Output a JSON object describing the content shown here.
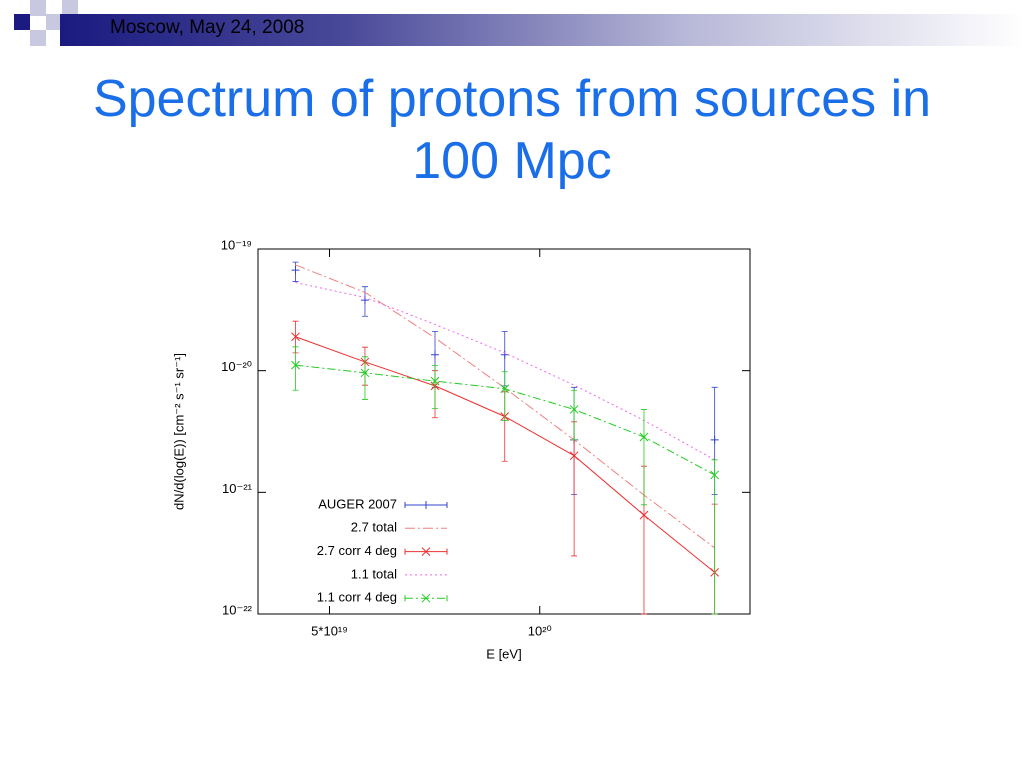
{
  "header": "Moscow, May 24, 2008",
  "chart_data": {
    "type": "line",
    "title": "Spectrum of protons from sources in 100 Mpc",
    "x_label": "E [eV]",
    "y_label": "dN/d(log(E)) [cm⁻² s⁻¹ sr⁻¹]",
    "x_scale": "log",
    "y_scale": "log",
    "xlim": [
      3.95e+19,
      2e+20
    ],
    "ylim": [
      1e-22,
      1e-19
    ],
    "xticks": [
      {
        "value": 5e+19,
        "label": "5*10¹⁹"
      },
      {
        "value": 1e+20,
        "label": "10²⁰"
      }
    ],
    "yticks": [
      {
        "value": 1e-22,
        "label": "10⁻²²"
      },
      {
        "value": 1e-21,
        "label": "10⁻²¹"
      },
      {
        "value": 1e-20,
        "label": "10⁻²⁰"
      },
      {
        "value": 1e-19,
        "label": "10⁻¹⁹"
      }
    ],
    "legend": "lower left",
    "x": [
      4.47e+19,
      5.62e+19,
      7.08e+19,
      8.91e+19,
      1.12e+20,
      1.41e+20,
      1.78e+20
    ],
    "series": [
      {
        "name": "AUGER 2007",
        "color": "#3344cc",
        "style": "points",
        "marker": "+",
        "values": [
          6.7e-20,
          3.8e-20,
          1.35e-20,
          1.35e-20,
          2.7e-21,
          null,
          2.7e-21
        ],
        "y_low": [
          5.4e-20,
          2.8e-20,
          7.3e-21,
          7.5e-21,
          9.6e-22,
          null,
          9.6e-22
        ],
        "y_high": [
          7.8e-20,
          4.9e-20,
          2.1e-20,
          2.1e-20,
          7.3e-21,
          null,
          7.3e-21
        ]
      },
      {
        "name": "2.7 total",
        "color": "#f08080",
        "style": "line",
        "dash": "10,3,2,3",
        "values": [
          7.4e-20,
          4.4e-20,
          1.86e-20,
          7.2e-21,
          2.7e-21,
          9.5e-22,
          3.5e-22
        ]
      },
      {
        "name": "2.7 corr 4 deg",
        "color": "#ee3030",
        "style": "line-points",
        "marker": "x",
        "values": [
          1.9e-20,
          1.18e-20,
          7.5e-21,
          4.2e-21,
          2e-21,
          6.5e-22,
          2.2e-22
        ],
        "y_low": [
          1.4e-20,
          7.6e-21,
          4.1e-21,
          1.8e-21,
          3e-22,
          1e-22,
          1e-22
        ],
        "y_high": [
          2.55e-20,
          1.56e-20,
          1e-20,
          6.7e-21,
          3.8e-21,
          1.64e-21,
          8e-22
        ]
      },
      {
        "name": "1.1 total",
        "color": "#ee66ee",
        "style": "line",
        "dash": "2,3",
        "values": [
          5.3e-20,
          4e-20,
          2.4e-20,
          1.4e-20,
          7.6e-21,
          3.9e-21,
          1.85e-21
        ]
      },
      {
        "name": "1.1 corr 4 deg",
        "color": "#22cc22",
        "style": "line-points",
        "marker": "x",
        "dash": "8,3,2,3",
        "values": [
          1.11e-20,
          9.6e-21,
          8.2e-21,
          7.1e-21,
          4.8e-21,
          2.85e-21,
          1.39e-21
        ],
        "y_low": [
          6.9e-21,
          5.8e-21,
          4.9e-21,
          3.9e-21,
          2.7e-21,
          7.9e-22,
          1e-22
        ],
        "y_high": [
          1.57e-20,
          1.3e-20,
          1.1e-20,
          9.8e-21,
          6.9e-21,
          4.8e-21,
          1.85e-21
        ]
      }
    ]
  }
}
